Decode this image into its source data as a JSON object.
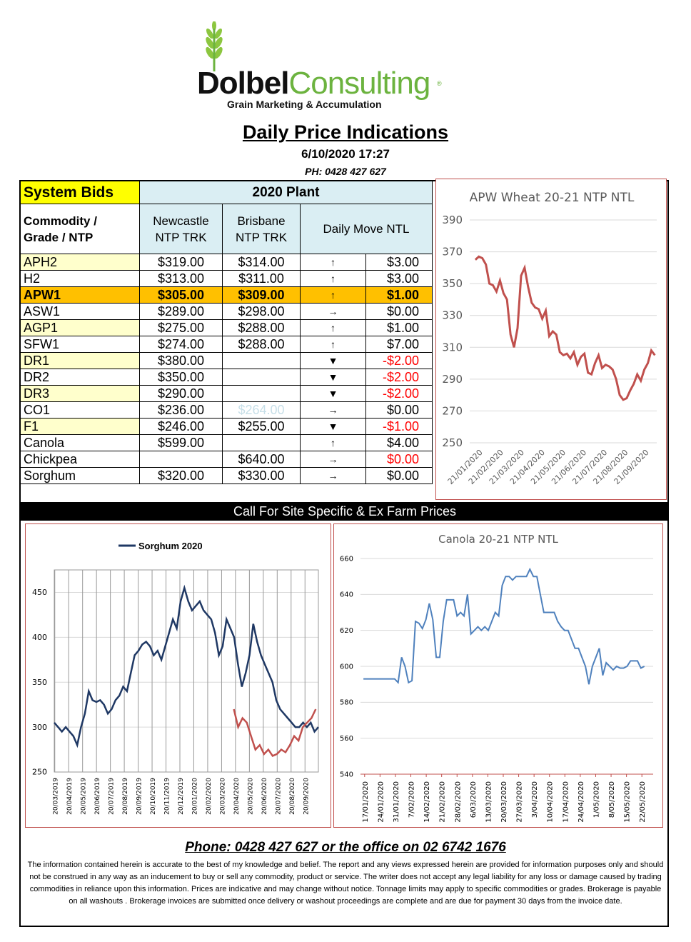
{
  "logo": {
    "brand_a": "Dolbel",
    "brand_b": "Consulting",
    "reg": "®",
    "tagline": "Grain Marketing & Accumulation"
  },
  "header": {
    "title": "Daily Price Indications",
    "datetime": "6/10/2020 17:27",
    "phone": "PH: 0428 427 627"
  },
  "table": {
    "system_bids": "System Bids",
    "plant": "2020 Plant",
    "col_commodity_1": "Commodity /",
    "col_commodity_2": "Grade / NTP",
    "col_newcastle_1": "Newcastle",
    "col_newcastle_2": "NTP TRK",
    "col_brisbane_1": "Brisbane",
    "col_brisbane_2": "NTP TRK",
    "col_move": "Daily  Move NTL",
    "rows": [
      {
        "grade": "APH2",
        "newcastle": "$319.00",
        "brisbane": "$314.00",
        "arrow": "↑",
        "move": "$3.00"
      },
      {
        "grade": "H2",
        "newcastle": "$313.00",
        "brisbane": "$311.00",
        "arrow": "↑",
        "move": "$3.00"
      },
      {
        "grade": "APW1",
        "newcastle": "$305.00",
        "brisbane": "$309.00",
        "arrow": "↑",
        "move": "$1.00"
      },
      {
        "grade": "ASW1",
        "newcastle": "$289.00",
        "brisbane": "$298.00",
        "arrow": "→",
        "move": "$0.00"
      },
      {
        "grade": "AGP1",
        "newcastle": "$275.00",
        "brisbane": "$288.00",
        "arrow": "↑",
        "move": "$1.00"
      },
      {
        "grade": "SFW1",
        "newcastle": "$274.00",
        "brisbane": "$288.00",
        "arrow": "↑",
        "move": "$7.00"
      },
      {
        "grade": "DR1",
        "newcastle": "$380.00",
        "brisbane": "",
        "arrow": "▼",
        "move": "-$2.00"
      },
      {
        "grade": "DR2",
        "newcastle": "$350.00",
        "brisbane": "",
        "arrow": "▼",
        "move": "-$2.00"
      },
      {
        "grade": "DR3",
        "newcastle": "$290.00",
        "brisbane": "",
        "arrow": "▼",
        "move": "-$2.00"
      },
      {
        "grade": "CO1",
        "newcastle": "$236.00",
        "brisbane": "$264.00",
        "arrow": "→",
        "move": "$0.00"
      },
      {
        "grade": "F1",
        "newcastle": "$246.00",
        "brisbane": "$255.00",
        "arrow": "▼",
        "move": "-$1.00"
      },
      {
        "grade": "Canola",
        "newcastle": "$599.00",
        "brisbane": "",
        "arrow": "↑",
        "move": "$4.00"
      },
      {
        "grade": "Chickpea",
        "newcastle": "",
        "brisbane": "$640.00",
        "arrow": "→",
        "move": "$0.00"
      },
      {
        "grade": "Sorghum",
        "newcastle": "$320.00",
        "brisbane": "$330.00",
        "arrow": "→",
        "move": "$0.00"
      }
    ]
  },
  "banner": "Call For Site Specific & Ex Farm Prices",
  "footer": {
    "phone": "Phone: 0428 427 627 or the office on 02 6742 1676",
    "disclaimer": "The information contained herein is accurate to the best of my knowledge and belief.  The report and any views expressed herein are provided for information purposes only and should not be construed in any way as an inducement to buy or sell any commodity, product or service. The writer does not accept any legal liability for any loss or damage caused by trading commodities in reliance upon this information. Prices are indicative and may change without notice. Tonnage limits may apply to specific commodities or grades.  Brokerage is payable on all washouts . Brokerage invoices are submitted once delivery or washout proceedings are complete and are due for payment 30 days from the invoice date."
  },
  "colors": {
    "apw_line": "#c0504d",
    "sorghum_2020": "#1f3864",
    "sorghum_2021": "#c0504d",
    "canola_line": "#4f81bd",
    "highlight": "#ffc000",
    "yellow_cell": "#ffffcc",
    "blue_cell": "#daeef3"
  },
  "chart_data": [
    {
      "type": "line",
      "title": "APW Wheat 20-21 NTP NTL",
      "ylim": [
        250,
        390
      ],
      "yticks": [
        390,
        370,
        350,
        330,
        310,
        290,
        270,
        250
      ],
      "xticks": [
        "21/01/2020",
        "21/02/2020",
        "21/03/2020",
        "21/04/2020",
        "21/05/2020",
        "21/06/2020",
        "21/07/2020",
        "21/08/2020",
        "21/09/2020"
      ],
      "series": [
        {
          "values": [
            365,
            367,
            366,
            362,
            350,
            349,
            345,
            352,
            344,
            340,
            318,
            310,
            322,
            355,
            360,
            348,
            338,
            335,
            334,
            328,
            333,
            317,
            320,
            318,
            307,
            305,
            306,
            303,
            307,
            299,
            304,
            306,
            294,
            293,
            300,
            305,
            297,
            299,
            298,
            296,
            290,
            280,
            277,
            278,
            283,
            287,
            293,
            289,
            296,
            300,
            308,
            305
          ]
        }
      ]
    },
    {
      "type": "line",
      "legend": "top",
      "ylim": [
        250,
        475
      ],
      "yticks": [
        450,
        400,
        350,
        300,
        250
      ],
      "xticks": [
        "20/03/2019",
        "20/04/2019",
        "20/05/2019",
        "20/06/2019",
        "20/07/2019",
        "20/08/2019",
        "20/09/2019",
        "20/10/2019",
        "20/11/2019",
        "20/12/2019",
        "20/01/2020",
        "20/02/2020",
        "20/03/2020",
        "20/04/2020",
        "20/05/2020",
        "20/06/2020",
        "20/07/2020",
        "20/08/2020",
        "20/09/2020"
      ],
      "series": [
        {
          "name": "Sorghum 2020",
          "values": [
            305,
            300,
            295,
            300,
            295,
            290,
            280,
            300,
            315,
            340,
            330,
            328,
            330,
            325,
            315,
            320,
            330,
            335,
            345,
            340,
            360,
            380,
            385,
            392,
            395,
            390,
            380,
            385,
            375,
            390,
            405,
            420,
            410,
            440,
            455,
            440,
            430,
            435,
            440,
            430,
            425,
            420,
            405,
            380,
            390,
            420,
            410,
            400,
            370,
            345,
            360,
            380,
            415,
            395,
            380,
            370,
            360,
            350,
            330,
            320,
            315,
            310,
            305,
            300,
            300,
            305,
            300,
            305,
            295,
            300
          ]
        },
        {
          "values": [
            320,
            300,
            310,
            305,
            290,
            275,
            280,
            270,
            275,
            268,
            270,
            275,
            272,
            280,
            290,
            285,
            300,
            305,
            310,
            320
          ]
        }
      ]
    },
    {
      "type": "line",
      "title": "Canola 20-21 NTP NTL",
      "ylim": [
        540,
        660
      ],
      "yticks": [
        660,
        640,
        620,
        600,
        580,
        560,
        540
      ],
      "xticks": [
        "17/01/2020",
        "24/01/2020",
        "31/01/2020",
        "7/02/2020",
        "14/02/2020",
        "21/02/2020",
        "28/02/2020",
        "6/03/2020",
        "13/03/2020",
        "20/03/2020",
        "27/03/2020",
        "3/04/2020",
        "10/04/2020",
        "17/04/2020",
        "24/04/2020",
        "1/05/2020",
        "8/05/2020",
        "15/05/2020",
        "22/05/2020"
      ],
      "series": [
        {
          "values": [
            593,
            593,
            593,
            593,
            593,
            593,
            593,
            593,
            593,
            593,
            591,
            605,
            600,
            591,
            592,
            625,
            624,
            621,
            626,
            635,
            626,
            605,
            605,
            625,
            637,
            637,
            637,
            628,
            630,
            628,
            640,
            618,
            620,
            622,
            620,
            622,
            620,
            625,
            630,
            628,
            645,
            650,
            650,
            648,
            650,
            650,
            650,
            650,
            654,
            650,
            650,
            640,
            630,
            630,
            630,
            630,
            625,
            622,
            620,
            620,
            615,
            610,
            610,
            605,
            600,
            590,
            600,
            605,
            610,
            595,
            602,
            600,
            598,
            600,
            599,
            599,
            600,
            603,
            603,
            603,
            599,
            600
          ]
        }
      ]
    }
  ]
}
